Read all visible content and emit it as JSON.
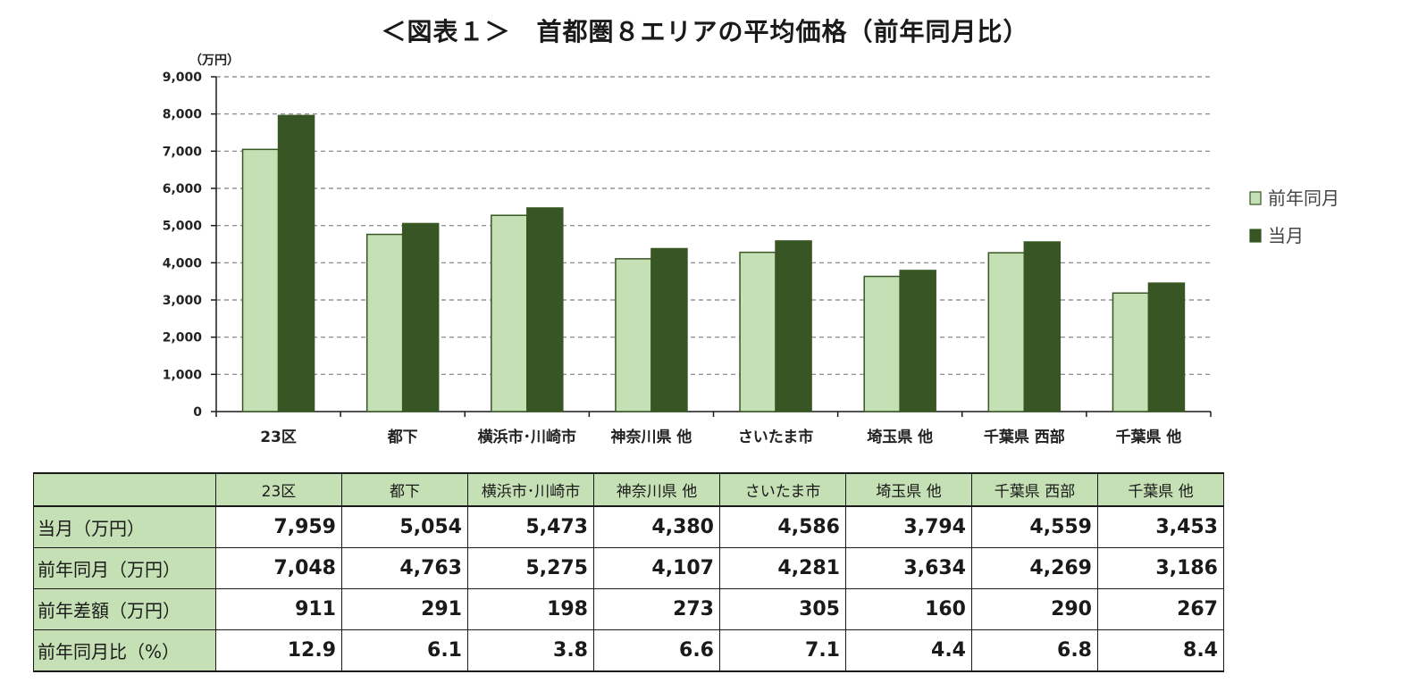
{
  "title": "＜図表１＞　首都圏８エリアの平均価格（前年同月比）",
  "colors": {
    "prev": "#c5e0b4",
    "curr": "#375623",
    "axis": "#1a1a1a",
    "grid": "#7f7f7f"
  },
  "chart_data": {
    "type": "bar",
    "unit_label": "（万円）",
    "categories": [
      "23区",
      "都下",
      "横浜市･川崎市",
      "神奈川県 他",
      "さいたま市",
      "埼玉県 他",
      "千葉県 西部",
      "千葉県 他"
    ],
    "series": [
      {
        "name": "前年同月",
        "values": [
          7048,
          4763,
          5275,
          4107,
          4281,
          3634,
          4269,
          3186
        ]
      },
      {
        "name": "当月",
        "values": [
          7959,
          5054,
          5473,
          4380,
          4586,
          3794,
          4559,
          3453
        ]
      }
    ],
    "ylim": [
      0,
      9000
    ],
    "yticks": [
      "0",
      "1,000",
      "2,000",
      "3,000",
      "4,000",
      "5,000",
      "6,000",
      "7,000",
      "8,000",
      "9,000"
    ],
    "grid": true,
    "legend_position": "right"
  },
  "table": {
    "columns": [
      "23区",
      "都下",
      "横浜市･川崎市",
      "神奈川県 他",
      "さいたま市",
      "埼玉県 他",
      "千葉県 西部",
      "千葉県 他"
    ],
    "rows": [
      {
        "label": "当月（万円）",
        "values": [
          "7,959",
          "5,054",
          "5,473",
          "4,380",
          "4,586",
          "3,794",
          "4,559",
          "3,453"
        ]
      },
      {
        "label": "前年同月（万円）",
        "values": [
          "7,048",
          "4,763",
          "5,275",
          "4,107",
          "4,281",
          "3,634",
          "4,269",
          "3,186"
        ]
      },
      {
        "label": "前年差額（万円）",
        "values": [
          "911",
          "291",
          "198",
          "273",
          "305",
          "160",
          "290",
          "267"
        ]
      },
      {
        "label": "前年同月比（%）",
        "values": [
          "12.9",
          "6.1",
          "3.8",
          "6.6",
          "7.1",
          "4.4",
          "6.8",
          "8.4"
        ]
      }
    ]
  }
}
